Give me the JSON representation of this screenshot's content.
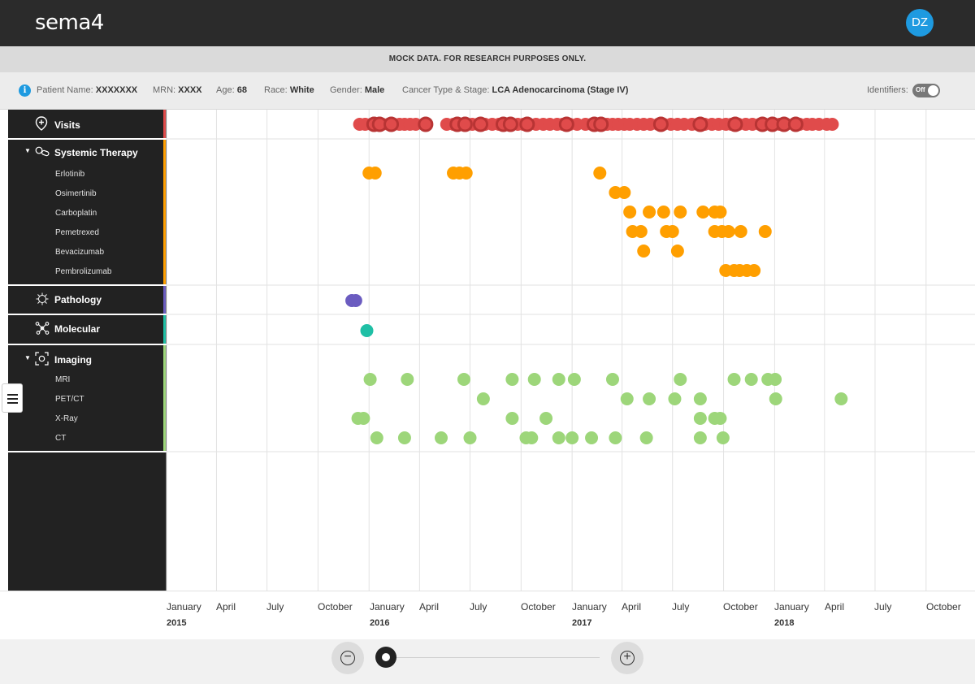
{
  "header": {
    "logo": "sema4",
    "avatar": "DZ"
  },
  "notice": "MOCK DATA. FOR RESEARCH PURPOSES ONLY.",
  "patient": {
    "name_label": "Patient Name:",
    "name": "XXXXXXX",
    "mrn_label": "MRN:",
    "mrn": "XXXX",
    "age_label": "Age:",
    "age": "68",
    "race_label": "Race:",
    "race": "White",
    "gender_label": "Gender:",
    "gender": "Male",
    "cancer_label": "Cancer Type & Stage:",
    "cancer": "LCA Adenocarcinoma (Stage IV)",
    "identifiers_label": "Identifiers:",
    "toggle_state": "Off"
  },
  "sidebar": {
    "visits": "Visits",
    "systemic": "Systemic Therapy",
    "systemic_items": [
      "Erlotinib",
      "Osimertinib",
      "Carboplatin",
      "Pemetrexed",
      "Bevacizumab",
      "Pembrolizumab"
    ],
    "pathology": "Pathology",
    "molecular": "Molecular",
    "imaging": "Imaging",
    "imaging_items": [
      "MRI",
      "PET/CT",
      "X-Ray",
      "CT"
    ]
  },
  "colors": {
    "visits": "#e04b4b",
    "visits_ring": "#b83434",
    "systemic": "#ff9f00",
    "pathology": "#6b5cc0",
    "molecular": "#1fbfa5",
    "imaging": "#9dd67a"
  },
  "axis": {
    "months": [
      "January",
      "April",
      "July",
      "October",
      "January",
      "April",
      "July",
      "October",
      "January",
      "April",
      "July",
      "October",
      "January",
      "April",
      "July",
      "October"
    ],
    "years": [
      "2015",
      "2016",
      "2017",
      "2018"
    ]
  },
  "chart_data": {
    "type": "scatter",
    "x_unit": "date",
    "x_range": [
      "2015-01-01",
      "2018-12-31"
    ],
    "series": [
      {
        "name": "Visits",
        "points": [
          "2015-12-15",
          "2015-12-25",
          "2016-01-05",
          "2016-01-15",
          "2016-01-25",
          "2016-02-05",
          "2016-02-15",
          "2016-02-25",
          "2016-03-05",
          "2016-03-15",
          "2016-03-25",
          "2016-05-20",
          "2016-06-01",
          "2016-06-15",
          "2016-06-25",
          "2016-07-05",
          "2016-07-15",
          "2016-07-28",
          "2016-08-10",
          "2016-08-22",
          "2016-09-05",
          "2016-09-15",
          "2016-09-25",
          "2016-10-05",
          "2016-10-15",
          "2016-10-28",
          "2016-11-10",
          "2016-11-22",
          "2016-12-05",
          "2016-12-15",
          "2016-12-28",
          "2017-01-10",
          "2017-01-25",
          "2017-02-05",
          "2017-02-15",
          "2017-02-25",
          "2017-03-05",
          "2017-03-15",
          "2017-03-25",
          "2017-04-05",
          "2017-04-15",
          "2017-04-28",
          "2017-05-10",
          "2017-05-22",
          "2017-06-05",
          "2017-06-15",
          "2017-06-28",
          "2017-07-10",
          "2017-07-22",
          "2017-08-05",
          "2017-08-15",
          "2017-08-28",
          "2017-09-10",
          "2017-09-22",
          "2017-10-05",
          "2017-10-15",
          "2017-10-28",
          "2017-11-10",
          "2017-11-22",
          "2017-12-05",
          "2017-12-15",
          "2017-12-28",
          "2018-01-10",
          "2018-01-22",
          "2018-02-05",
          "2018-02-15",
          "2018-02-28",
          "2018-03-10",
          "2018-03-22",
          "2018-04-05",
          "2018-04-15"
        ]
      },
      {
        "name": "Visits ringed",
        "points": [
          "2016-01-10",
          "2016-01-20",
          "2016-02-10",
          "2016-04-12",
          "2016-06-08",
          "2016-06-22",
          "2016-07-20",
          "2016-08-30",
          "2016-09-12",
          "2016-10-12",
          "2016-12-22",
          "2017-02-10",
          "2017-02-22",
          "2017-06-10",
          "2017-08-20",
          "2017-10-22",
          "2017-12-10",
          "2017-12-28",
          "2018-01-18",
          "2018-02-08"
        ]
      },
      {
        "name": "Erlotinib",
        "points": [
          "2016-01-01",
          "2016-01-12",
          "2016-06-01",
          "2016-06-12",
          "2016-06-24",
          "2017-02-20"
        ]
      },
      {
        "name": "Osimertinib",
        "points": [
          "2017-03-20",
          "2017-04-05"
        ]
      },
      {
        "name": "Carboplatin",
        "points": [
          "2017-04-15",
          "2017-05-20",
          "2017-06-15",
          "2017-07-15",
          "2017-08-25",
          "2017-09-15",
          "2017-09-25"
        ]
      },
      {
        "name": "Pemetrexed",
        "points": [
          "2017-04-20",
          "2017-05-05",
          "2017-06-20",
          "2017-07-01",
          "2017-09-15",
          "2017-09-28",
          "2017-10-10",
          "2017-11-01",
          "2017-12-15"
        ]
      },
      {
        "name": "Bevacizumab",
        "points": [
          "2017-05-10",
          "2017-07-10"
        ]
      },
      {
        "name": "Pembrolizumab",
        "points": [
          "2017-10-05",
          "2017-10-20",
          "2017-10-30",
          "2017-11-12",
          "2017-11-25"
        ]
      },
      {
        "name": "Pathology",
        "points": [
          "2015-12-01",
          "2015-12-08"
        ]
      },
      {
        "name": "Molecular",
        "points": [
          "2015-12-28"
        ]
      },
      {
        "name": "MRI",
        "points": [
          "2016-01-03",
          "2016-03-10",
          "2016-06-20",
          "2016-09-15",
          "2016-10-25",
          "2016-12-08",
          "2017-01-05",
          "2017-03-15",
          "2017-07-15",
          "2017-10-20",
          "2017-11-20",
          "2017-12-20",
          "2018-01-02"
        ]
      },
      {
        "name": "PET/CT",
        "points": [
          "2016-07-25",
          "2017-04-10",
          "2017-05-20",
          "2017-07-05",
          "2017-08-20",
          "2018-01-03",
          "2018-05-01"
        ]
      },
      {
        "name": "X-Ray",
        "points": [
          "2015-12-12",
          "2015-12-22",
          "2016-09-15",
          "2016-11-15",
          "2017-08-20",
          "2017-09-15",
          "2017-09-25"
        ]
      },
      {
        "name": "CT",
        "points": [
          "2016-01-15",
          "2016-03-05",
          "2016-05-10",
          "2016-07-01",
          "2016-10-10",
          "2016-10-20",
          "2016-12-08",
          "2017-01-01",
          "2017-02-05",
          "2017-03-20",
          "2017-05-15",
          "2017-08-20",
          "2017-09-30"
        ]
      }
    ]
  }
}
